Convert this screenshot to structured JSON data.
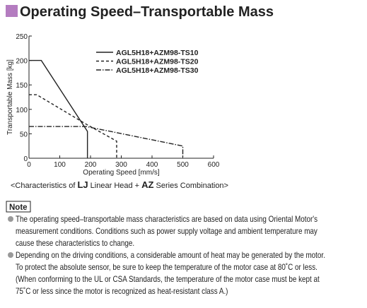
{
  "title": "Operating Speed–Transportable Mass",
  "chart_data": {
    "type": "line",
    "y_label": "Transportable Mass [kg]",
    "x_label": "Operating Speed [mm/s]",
    "xlim": [
      0,
      600
    ],
    "xticks": [
      0,
      100,
      200,
      300,
      400,
      500,
      600
    ],
    "ylim": [
      0,
      250
    ],
    "yticks": [
      0,
      50,
      100,
      150,
      200,
      250
    ],
    "grid": false,
    "legend": "top-right",
    "series": [
      {
        "name": "AGL5H18+AZM98-TS10",
        "color": "#222222",
        "dash": "solid",
        "x": [
          0,
          40,
          190,
          190
        ],
        "values": [
          200,
          200,
          55,
          0
        ]
      },
      {
        "name": "AGL5H18+AZM98-TS20",
        "color": "#222222",
        "dash": "dashed",
        "x": [
          0,
          25,
          185,
          285,
          285
        ],
        "values": [
          130,
          130,
          70,
          35,
          0
        ]
      },
      {
        "name": "AGL5H18+AZM98-TS30",
        "color": "#222222",
        "dash": "dashdot",
        "x": [
          0,
          185,
          500,
          500
        ],
        "values": [
          65,
          65,
          25,
          0
        ]
      }
    ]
  },
  "caption": [
    "<Characteristics of ",
    "LJ",
    " Linear Head + ",
    "AZ",
    " Series Combination>"
  ],
  "note": {
    "label": "Note",
    "bullets": [
      [
        "The operating speed–transportable mass characteristics are based on data using Oriental Motor's",
        "measurement conditions. Conditions such as power supply voltage and ambient temperature may",
        "cause these characteristics to change."
      ],
      [
        "Depending on the driving conditions, a considerable amount of heat may be generated by the motor.",
        "To protect the absolute sensor, be sure to keep the temperature of the motor case at 80˚C or less.",
        "(When conforming to the UL or CSA Standards, the temperature of the motor case must be kept at",
        "75˚C or less since the motor is recognized as heat-resistant class A.)"
      ]
    ]
  }
}
